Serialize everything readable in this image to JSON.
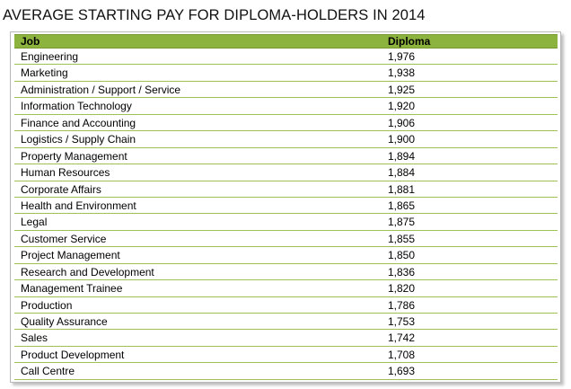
{
  "title": "AVERAGE STARTING PAY FOR DIPLOMA-HOLDERS IN 2014",
  "table": {
    "headers": [
      "Job",
      "Diploma"
    ],
    "rows": [
      [
        "Engineering",
        "1,976"
      ],
      [
        "Marketing",
        "1,938"
      ],
      [
        "Administration / Support / Service",
        "1,925"
      ],
      [
        "Information Technology",
        "1,920"
      ],
      [
        "Finance and Accounting",
        "1,906"
      ],
      [
        "Logistics / Supply Chain",
        "1,900"
      ],
      [
        "Property Management",
        "1,894"
      ],
      [
        "Human Resources",
        "1,884"
      ],
      [
        "Corporate Affairs",
        "1,881"
      ],
      [
        "Health and Environment",
        "1,865"
      ],
      [
        "Legal",
        "1,875"
      ],
      [
        "Customer Service",
        "1,855"
      ],
      [
        "Project Management",
        "1,850"
      ],
      [
        "Research and Development",
        "1,836"
      ],
      [
        "Management Trainee",
        "1,820"
      ],
      [
        "Production",
        "1,786"
      ],
      [
        "Quality Assurance",
        "1,753"
      ],
      [
        "Sales",
        "1,742"
      ],
      [
        "Product Development",
        "1,708"
      ],
      [
        "Call Centre",
        "1,693"
      ]
    ]
  },
  "colors": {
    "header_fill": "#8db33f",
    "row_rule": "#9ec254"
  }
}
